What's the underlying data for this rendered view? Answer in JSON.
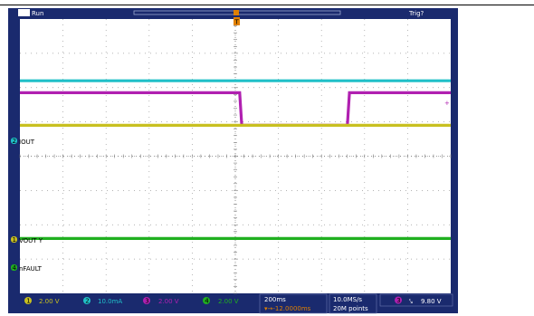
{
  "header": {
    "run_label": "Run",
    "trig_label": "Trig?",
    "trigger_marker": "T"
  },
  "colors": {
    "bezel": "#1a2a6e",
    "ch1": "#c8c020",
    "ch2": "#20c0c8",
    "ch3": "#b020b0",
    "ch4": "#20b020",
    "trigger": "#e08000"
  },
  "channel_tags": [
    {
      "num": "2",
      "name": "IOUT",
      "color": "#20c0c8"
    },
    {
      "num": "1",
      "name": "VOUT Y",
      "color": "#c8c020"
    },
    {
      "num": "4",
      "name": "nFAULT",
      "color": "#20b020"
    }
  ],
  "status_bar": {
    "channels": [
      {
        "num": "1",
        "scale": "2.00 V",
        "color": "#c8c020"
      },
      {
        "num": "2",
        "scale": "10.0mA",
        "color": "#20c0c8"
      },
      {
        "num": "3",
        "scale": "2.00 V",
        "color": "#b020b0"
      },
      {
        "num": "4",
        "scale": "2.00 V",
        "color": "#20b020"
      }
    ],
    "timebase": "200ms",
    "trigger_offset": "▾→-12.0000ms",
    "sample_rate": "10.0MS/s",
    "record_length": "20M points",
    "trigger_channel": "3",
    "trigger_slope": "⤥",
    "trigger_level": "9.80 V"
  },
  "chart_data": {
    "type": "line",
    "title": "",
    "xlabel": "",
    "ylabel": "",
    "x_divisions": 10,
    "y_divisions": 8,
    "grid": true,
    "series": [
      {
        "channel": "2",
        "name": "IOUT",
        "color": "#20c0c8",
        "points": [
          [
            0,
            2.2
          ],
          [
            10,
            2.2
          ]
        ]
      },
      {
        "channel": "3",
        "color": "#b020b0",
        "points": [
          [
            0,
            1.85
          ],
          [
            5.1,
            1.85
          ],
          [
            5.15,
            0.9
          ],
          [
            7.6,
            0.9
          ],
          [
            7.65,
            1.85
          ],
          [
            10,
            1.85
          ]
        ]
      },
      {
        "channel": "1",
        "name": "VOUT Y",
        "color": "#c8c020",
        "points": [
          [
            0,
            0.9
          ],
          [
            10,
            0.9
          ]
        ]
      },
      {
        "channel": "4",
        "name": "nFAULT",
        "color": "#20b020",
        "points": [
          [
            0,
            -2.4
          ],
          [
            10,
            -2.4
          ]
        ]
      }
    ]
  }
}
